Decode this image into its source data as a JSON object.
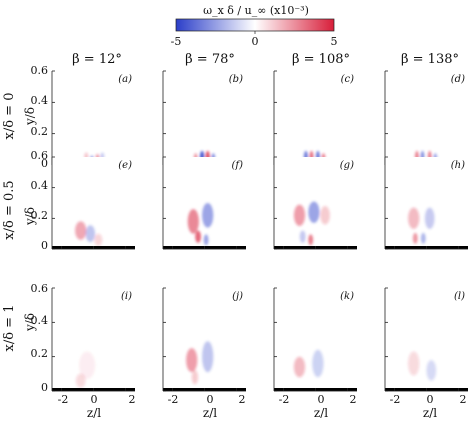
{
  "colorbar": {
    "label": "ω_x δ / u_∞ (x10⁻³)",
    "ticks": [
      "-5",
      "0",
      "5"
    ],
    "min": -5,
    "max": 5,
    "colors": {
      "negative": "#2b3ec9",
      "zero": "#ffffff",
      "positive": "#d81e3a"
    }
  },
  "columns": [
    "β = 12°",
    "β = 78°",
    "β = 108°",
    "β = 138°"
  ],
  "rows": [
    "x/δ = 0",
    "x/δ = 0.5",
    "x/δ = 1"
  ],
  "panel_labels": [
    "(a)",
    "(b)",
    "(c)",
    "(d)",
    "(e)",
    "(f)",
    "(g)",
    "(h)",
    "(i)",
    "(j)",
    "(k)",
    "(l)"
  ],
  "y_axis": {
    "label": "y/δ",
    "ticks": [
      "0",
      "0.2",
      "0.4",
      "0.6"
    ]
  },
  "x_axis": {
    "label": "z/l",
    "ticks": [
      "-2",
      "0",
      "2"
    ]
  },
  "chart_data": {
    "type": "heatmap",
    "title": "",
    "quantity": "ω_x δ / u_∞ (x10⁻³)",
    "color_range": [
      -5,
      5
    ],
    "xlabel": "z/l",
    "ylabel": "y/δ",
    "xlim": [
      -2.6,
      2.6
    ],
    "ylim": [
      0,
      0.6
    ],
    "xticks": [
      -2,
      0,
      2
    ],
    "yticks": [
      0,
      0.2,
      0.4,
      0.6
    ],
    "grid": false,
    "column_parameter": {
      "name": "β",
      "values_deg": [
        12,
        78,
        108,
        138
      ]
    },
    "row_parameter": {
      "name": "x/δ",
      "values": [
        0,
        0.5,
        1
      ]
    },
    "panels": [
      {
        "label": "a",
        "row": 0,
        "col": 0,
        "blobs": [
          {
            "z": -0.1,
            "y": 0.03,
            "sz": 0.12,
            "sy": 0.03,
            "v": -3
          },
          {
            "z": 0.25,
            "y": 0.04,
            "sz": 0.12,
            "sy": 0.03,
            "v": 2.5
          },
          {
            "z": -0.45,
            "y": 0.05,
            "sz": 0.12,
            "sy": 0.03,
            "v": 1.5
          },
          {
            "z": 0.55,
            "y": 0.05,
            "sz": 0.12,
            "sy": 0.03,
            "v": -1.5
          }
        ]
      },
      {
        "label": "b",
        "row": 0,
        "col": 1,
        "blobs": [
          {
            "z": -0.55,
            "y": 0.04,
            "sz": 0.12,
            "sy": 0.035,
            "v": 2.5
          },
          {
            "z": -0.15,
            "y": 0.05,
            "sz": 0.14,
            "sy": 0.04,
            "v": -4.5
          },
          {
            "z": 0.2,
            "y": 0.05,
            "sz": 0.14,
            "sy": 0.04,
            "v": 4
          },
          {
            "z": 0.55,
            "y": 0.04,
            "sz": 0.12,
            "sy": 0.035,
            "v": -3
          }
        ]
      },
      {
        "label": "c",
        "row": 0,
        "col": 2,
        "blobs": [
          {
            "z": -0.6,
            "y": 0.05,
            "sz": 0.13,
            "sy": 0.04,
            "v": -3.5
          },
          {
            "z": -0.25,
            "y": 0.05,
            "sz": 0.12,
            "sy": 0.04,
            "v": 3.5
          },
          {
            "z": 0.15,
            "y": 0.05,
            "sz": 0.13,
            "sy": 0.04,
            "v": -3.5
          },
          {
            "z": 0.5,
            "y": 0.04,
            "sz": 0.12,
            "sy": 0.035,
            "v": 3
          }
        ]
      },
      {
        "label": "d",
        "row": 0,
        "col": 3,
        "blobs": [
          {
            "z": -0.6,
            "y": 0.05,
            "sz": 0.12,
            "sy": 0.04,
            "v": 3
          },
          {
            "z": -0.25,
            "y": 0.05,
            "sz": 0.12,
            "sy": 0.04,
            "v": -3
          },
          {
            "z": 0.2,
            "y": 0.05,
            "sz": 0.12,
            "sy": 0.04,
            "v": 3
          },
          {
            "z": 0.55,
            "y": 0.04,
            "sz": 0.12,
            "sy": 0.035,
            "v": -2.5
          }
        ]
      },
      {
        "label": "e",
        "row": 1,
        "col": 0,
        "blobs": [
          {
            "z": -0.8,
            "y": 0.12,
            "sz": 0.35,
            "sy": 0.06,
            "v": 2
          },
          {
            "z": -0.2,
            "y": 0.1,
            "sz": 0.3,
            "sy": 0.055,
            "v": -1.6
          },
          {
            "z": 0.3,
            "y": 0.06,
            "sz": 0.25,
            "sy": 0.04,
            "v": 1
          }
        ]
      },
      {
        "label": "f",
        "row": 1,
        "col": 1,
        "blobs": [
          {
            "z": -0.7,
            "y": 0.18,
            "sz": 0.35,
            "sy": 0.08,
            "v": 2.8
          },
          {
            "z": -0.4,
            "y": 0.08,
            "sz": 0.18,
            "sy": 0.04,
            "v": 3.5
          },
          {
            "z": 0.2,
            "y": 0.22,
            "sz": 0.35,
            "sy": 0.08,
            "v": -2.5
          },
          {
            "z": 0.1,
            "y": 0.06,
            "sz": 0.15,
            "sy": 0.035,
            "v": -2.5
          }
        ]
      },
      {
        "label": "g",
        "row": 1,
        "col": 2,
        "blobs": [
          {
            "z": -1.0,
            "y": 0.22,
            "sz": 0.35,
            "sy": 0.07,
            "v": 2.2
          },
          {
            "z": -0.1,
            "y": 0.24,
            "sz": 0.35,
            "sy": 0.07,
            "v": -2.5
          },
          {
            "z": -0.8,
            "y": 0.08,
            "sz": 0.18,
            "sy": 0.04,
            "v": -1.5
          },
          {
            "z": -0.3,
            "y": 0.06,
            "sz": 0.15,
            "sy": 0.035,
            "v": 3
          },
          {
            "z": 0.6,
            "y": 0.22,
            "sz": 0.3,
            "sy": 0.06,
            "v": 1.2
          }
        ]
      },
      {
        "label": "h",
        "row": 1,
        "col": 3,
        "blobs": [
          {
            "z": -0.8,
            "y": 0.2,
            "sz": 0.35,
            "sy": 0.07,
            "v": 1.6
          },
          {
            "z": 0.2,
            "y": 0.2,
            "sz": 0.3,
            "sy": 0.07,
            "v": -1.4
          },
          {
            "z": -0.7,
            "y": 0.07,
            "sz": 0.15,
            "sy": 0.035,
            "v": 2.5
          },
          {
            "z": -0.2,
            "y": 0.07,
            "sz": 0.15,
            "sy": 0.035,
            "v": -2
          }
        ]
      },
      {
        "label": "i",
        "row": 2,
        "col": 0,
        "blobs": [
          {
            "z": -0.8,
            "y": 0.06,
            "sz": 0.3,
            "sy": 0.04,
            "v": 0.9
          },
          {
            "z": -0.4,
            "y": 0.15,
            "sz": 0.5,
            "sy": 0.08,
            "v": 0.35
          }
        ]
      },
      {
        "label": "j",
        "row": 2,
        "col": 1,
        "blobs": [
          {
            "z": -0.8,
            "y": 0.18,
            "sz": 0.35,
            "sy": 0.07,
            "v": 2.2
          },
          {
            "z": 0.2,
            "y": 0.2,
            "sz": 0.35,
            "sy": 0.09,
            "v": -1.6
          },
          {
            "z": -0.6,
            "y": 0.08,
            "sz": 0.2,
            "sy": 0.04,
            "v": 1.2
          }
        ]
      },
      {
        "label": "k",
        "row": 2,
        "col": 2,
        "blobs": [
          {
            "z": -1.0,
            "y": 0.14,
            "sz": 0.35,
            "sy": 0.06,
            "v": 1.6
          },
          {
            "z": 0.15,
            "y": 0.16,
            "sz": 0.35,
            "sy": 0.08,
            "v": -1.2
          }
        ]
      },
      {
        "label": "l",
        "row": 2,
        "col": 3,
        "blobs": [
          {
            "z": -0.8,
            "y": 0.16,
            "sz": 0.35,
            "sy": 0.07,
            "v": 0.9
          },
          {
            "z": 0.3,
            "y": 0.12,
            "sz": 0.3,
            "sy": 0.06,
            "v": -1.0
          }
        ]
      }
    ]
  }
}
